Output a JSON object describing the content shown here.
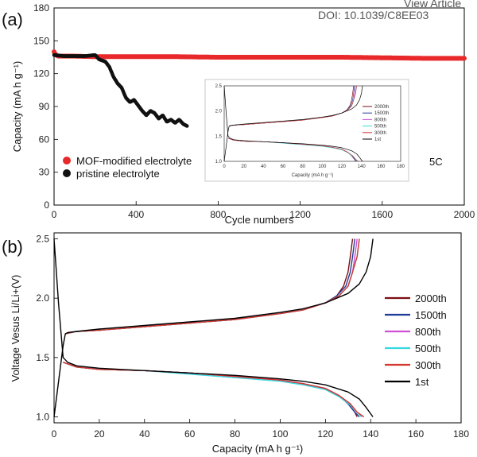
{
  "header": {
    "view_article": "View Article",
    "doi": "DOI: 10.1039/C8EE03"
  },
  "chart_data": [
    {
      "panel": "(a)",
      "type": "scatter",
      "xlabel": "Cycle numbers",
      "ylabel": "Capacity (mA h g⁻¹)",
      "xlim": [
        0,
        2000
      ],
      "ylim": [
        0,
        180
      ],
      "xticks": [
        0,
        400,
        800,
        1200,
        1600,
        2000
      ],
      "yticks": [
        0,
        30,
        60,
        90,
        120,
        150,
        180
      ],
      "rate_label": "5C",
      "legend_position": "bottom-left",
      "series": [
        {
          "name": "MOF-modified electrolyte",
          "color": "#e8292b",
          "x": [
            0,
            5,
            10,
            20,
            50,
            100,
            200,
            300,
            400,
            600,
            800,
            1000,
            1200,
            1400,
            1600,
            1800,
            2000
          ],
          "y": [
            140,
            138,
            137,
            136,
            136,
            136,
            135.5,
            135.5,
            135.5,
            135.5,
            135,
            135,
            135,
            135,
            134.5,
            134,
            134
          ]
        },
        {
          "name": "pristine electrolyte",
          "color": "#111111",
          "x": [
            0,
            50,
            100,
            150,
            200,
            220,
            250,
            270,
            290,
            310,
            330,
            350,
            370,
            390,
            410,
            430,
            450,
            470,
            490,
            510,
            530,
            550,
            570,
            590,
            610,
            630,
            650
          ],
          "y": [
            137,
            136,
            136,
            136,
            137,
            133,
            131,
            126,
            117,
            111,
            107,
            98,
            94,
            96,
            91,
            86,
            82,
            86,
            84,
            79,
            82,
            76,
            78,
            75,
            78,
            74,
            72
          ]
        }
      ],
      "inset": {
        "xlabel": "Capacity (mA h g⁻¹)",
        "xlim": [
          0,
          180
        ],
        "ylim": [
          1.0,
          2.5
        ],
        "xticks": [
          0,
          20,
          40,
          60,
          80,
          100,
          120,
          140,
          160,
          180
        ],
        "yticks": [
          1.0,
          1.5,
          2.0,
          2.5
        ],
        "legend": [
          "2000th",
          "1500th",
          "800th",
          "500th",
          "300th",
          "1st"
        ]
      }
    },
    {
      "panel": "(b)",
      "type": "line",
      "xlabel": "Capacity (mA h g⁻¹)",
      "ylabel": "Voltage Vesus Li/Li+(V)",
      "xlim": [
        0,
        180
      ],
      "ylim": [
        0.95,
        2.55
      ],
      "xticks": [
        0,
        20,
        40,
        60,
        80,
        100,
        120,
        140,
        160,
        180
      ],
      "yticks": [
        1.0,
        1.5,
        2.0,
        2.5
      ],
      "legend_position": "right",
      "series": [
        {
          "name": "2000th",
          "color": "#7a0f14",
          "charge_x": [
            5,
            10,
            20,
            40,
            60,
            80,
            100,
            110,
            120,
            125,
            128,
            130,
            131,
            132
          ],
          "charge_y": [
            1.7,
            1.72,
            1.73,
            1.76,
            1.79,
            1.82,
            1.87,
            1.9,
            1.96,
            2.02,
            2.1,
            2.22,
            2.35,
            2.5
          ],
          "discharge_x": [
            4,
            10,
            20,
            40,
            60,
            80,
            100,
            110,
            120,
            126,
            130,
            133,
            134
          ],
          "discharge_y": [
            1.46,
            1.42,
            1.4,
            1.39,
            1.37,
            1.34,
            1.31,
            1.28,
            1.24,
            1.18,
            1.11,
            1.04,
            1.0
          ]
        },
        {
          "name": "1500th",
          "color": "#1f3b9a",
          "charge_x": [
            5,
            10,
            20,
            40,
            60,
            80,
            100,
            110,
            120,
            125,
            129,
            131,
            132,
            133
          ],
          "charge_y": [
            1.7,
            1.72,
            1.73,
            1.76,
            1.79,
            1.82,
            1.87,
            1.9,
            1.96,
            2.02,
            2.1,
            2.22,
            2.35,
            2.5
          ],
          "discharge_x": [
            4,
            10,
            20,
            40,
            60,
            80,
            100,
            110,
            120,
            126,
            130,
            133,
            135
          ],
          "discharge_y": [
            1.46,
            1.42,
            1.4,
            1.39,
            1.37,
            1.34,
            1.31,
            1.28,
            1.24,
            1.18,
            1.11,
            1.04,
            1.0
          ]
        },
        {
          "name": "800th",
          "color": "#d04fd6",
          "charge_x": [
            5,
            10,
            20,
            40,
            60,
            80,
            100,
            110,
            120,
            126,
            130,
            132,
            133,
            134
          ],
          "charge_y": [
            1.7,
            1.72,
            1.73,
            1.76,
            1.79,
            1.82,
            1.87,
            1.9,
            1.96,
            2.02,
            2.1,
            2.22,
            2.35,
            2.5
          ],
          "discharge_x": [
            4,
            10,
            20,
            40,
            60,
            80,
            100,
            110,
            120,
            126,
            131,
            134,
            136
          ],
          "discharge_y": [
            1.46,
            1.42,
            1.4,
            1.39,
            1.37,
            1.34,
            1.31,
            1.28,
            1.24,
            1.18,
            1.11,
            1.04,
            1.0
          ]
        },
        {
          "name": "500th",
          "color": "#36d8e0",
          "charge_x": [
            5,
            10,
            20,
            40,
            60,
            80,
            100,
            110,
            120,
            126,
            130,
            132,
            134,
            135
          ],
          "charge_y": [
            1.7,
            1.72,
            1.73,
            1.76,
            1.79,
            1.82,
            1.87,
            1.9,
            1.96,
            2.02,
            2.1,
            2.22,
            2.35,
            2.5
          ],
          "discharge_x": [
            4,
            10,
            20,
            40,
            60,
            80,
            100,
            110,
            120,
            126,
            131,
            134,
            136
          ],
          "discharge_y": [
            1.46,
            1.42,
            1.4,
            1.39,
            1.36,
            1.33,
            1.3,
            1.27,
            1.23,
            1.17,
            1.1,
            1.04,
            1.0
          ]
        },
        {
          "name": "300th",
          "color": "#d4372c",
          "charge_x": [
            5,
            10,
            20,
            40,
            60,
            80,
            100,
            110,
            120,
            126,
            130,
            132,
            134,
            135
          ],
          "charge_y": [
            1.7,
            1.72,
            1.73,
            1.76,
            1.79,
            1.82,
            1.87,
            1.9,
            1.96,
            2.02,
            2.1,
            2.22,
            2.35,
            2.5
          ],
          "discharge_x": [
            4,
            10,
            20,
            40,
            60,
            80,
            100,
            110,
            120,
            126,
            131,
            134,
            137
          ],
          "discharge_y": [
            1.46,
            1.42,
            1.4,
            1.39,
            1.37,
            1.34,
            1.31,
            1.28,
            1.24,
            1.18,
            1.11,
            1.04,
            1.0
          ]
        },
        {
          "name": "1st",
          "color": "#000000",
          "charge_x": [
            0,
            2,
            4,
            5,
            6,
            10,
            20,
            40,
            60,
            80,
            100,
            110,
            120,
            130,
            135,
            138,
            140,
            141
          ],
          "charge_y": [
            1.0,
            1.3,
            1.6,
            1.7,
            1.71,
            1.72,
            1.74,
            1.77,
            1.8,
            1.83,
            1.88,
            1.91,
            1.96,
            2.04,
            2.12,
            2.22,
            2.35,
            2.5
          ],
          "discharge_x": [
            0,
            2,
            4,
            6,
            10,
            20,
            40,
            60,
            80,
            100,
            110,
            120,
            130,
            135,
            138,
            141
          ],
          "discharge_y": [
            2.5,
            1.95,
            1.5,
            1.46,
            1.43,
            1.41,
            1.39,
            1.37,
            1.35,
            1.32,
            1.3,
            1.27,
            1.21,
            1.15,
            1.08,
            1.0
          ]
        }
      ]
    }
  ]
}
